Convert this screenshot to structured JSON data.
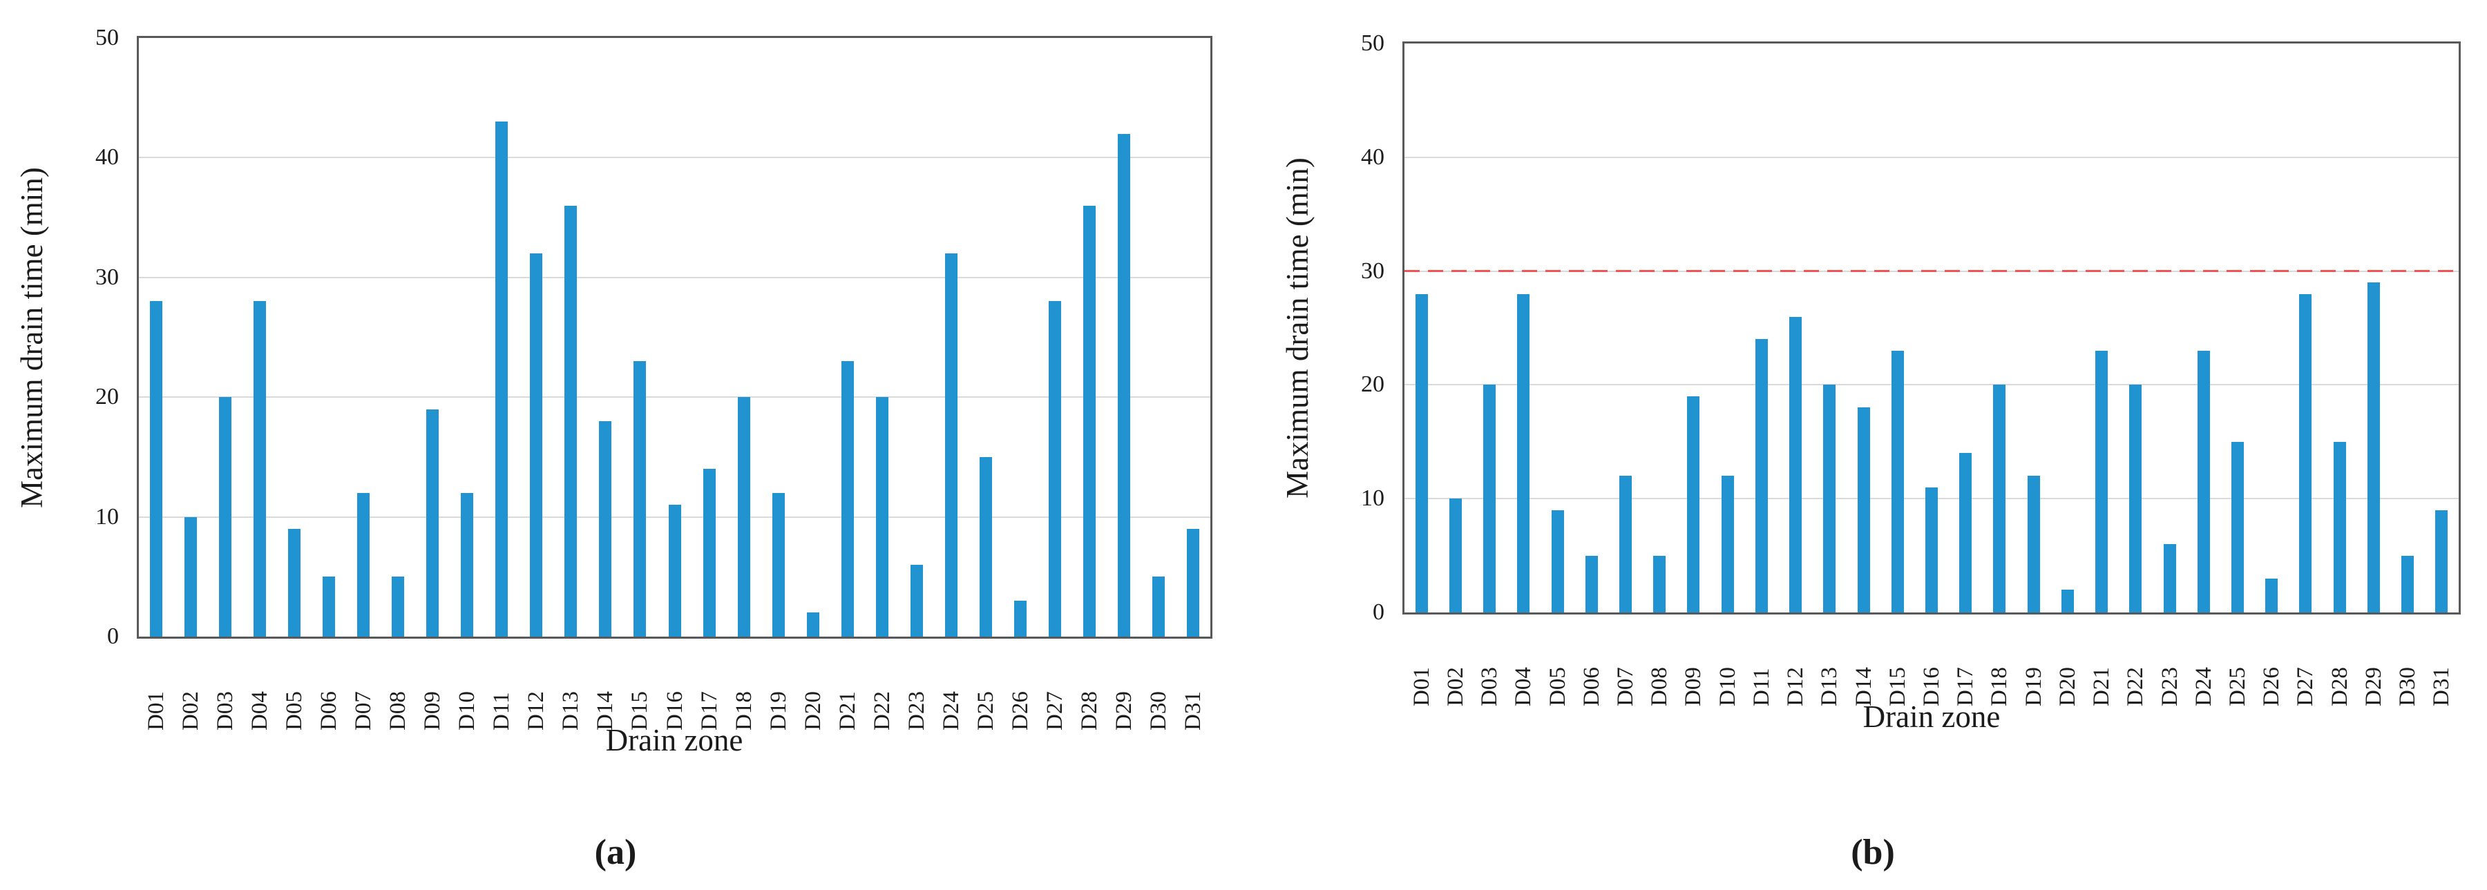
{
  "figure": {
    "background": "#ffffff",
    "text_color": "#1b1b1b",
    "axis_frame_color": "#58595b",
    "gridline_color": "#dadada"
  },
  "chart_data": [
    {
      "type": "bar",
      "panel": "a",
      "title": "(a)",
      "xlabel": "Drain zone",
      "ylabel": "Maximum drain time (min)",
      "categories": [
        "D01",
        "D02",
        "D03",
        "D04",
        "D05",
        "D06",
        "D07",
        "D08",
        "D09",
        "D10",
        "D11",
        "D12",
        "D13",
        "D14",
        "D15",
        "D16",
        "D17",
        "D18",
        "D19",
        "D20",
        "D21",
        "D22",
        "D23",
        "D24",
        "D25",
        "D26",
        "D27",
        "D28",
        "D29",
        "D30",
        "D31"
      ],
      "values": [
        28,
        10,
        20,
        28,
        9,
        5,
        12,
        5,
        19,
        12,
        43,
        32,
        36,
        18,
        23,
        11,
        14,
        20,
        12,
        2,
        23,
        20,
        6,
        32,
        15,
        3,
        28,
        36,
        42,
        5,
        9
      ],
      "ylim": [
        0,
        50
      ],
      "yticks": [
        0,
        10,
        20,
        30,
        40,
        50
      ],
      "grid": true,
      "gridlines_at": [
        10,
        20,
        30,
        40
      ],
      "legend": "none",
      "bar_color": "#2093d0",
      "threshold": null
    },
    {
      "type": "bar",
      "panel": "b",
      "title": "(b)",
      "xlabel": "Drain zone",
      "ylabel": "Maximum drain time (min)",
      "categories": [
        "D01",
        "D02",
        "D03",
        "D04",
        "D05",
        "D06",
        "D07",
        "D08",
        "D09",
        "D10",
        "D11",
        "D12",
        "D13",
        "D14",
        "D15",
        "D16",
        "D17",
        "D18",
        "D19",
        "D20",
        "D21",
        "D22",
        "D23",
        "D24",
        "D25",
        "D26",
        "D27",
        "D28",
        "D29",
        "D30",
        "D31"
      ],
      "values": [
        28,
        10,
        20,
        28,
        9,
        5,
        12,
        5,
        19,
        12,
        24,
        26,
        20,
        18,
        23,
        11,
        14,
        20,
        12,
        2,
        23,
        20,
        6,
        23,
        15,
        3,
        28,
        15,
        29,
        5,
        9
      ],
      "ylim": [
        0,
        50
      ],
      "yticks": [
        0,
        10,
        20,
        30,
        40,
        50
      ],
      "grid": true,
      "gridlines_at": [
        10,
        20,
        30,
        40
      ],
      "legend": "none",
      "bar_color": "#2093d0",
      "threshold": 30,
      "threshold_color": "#f15454",
      "threshold_style": "dashed"
    }
  ]
}
